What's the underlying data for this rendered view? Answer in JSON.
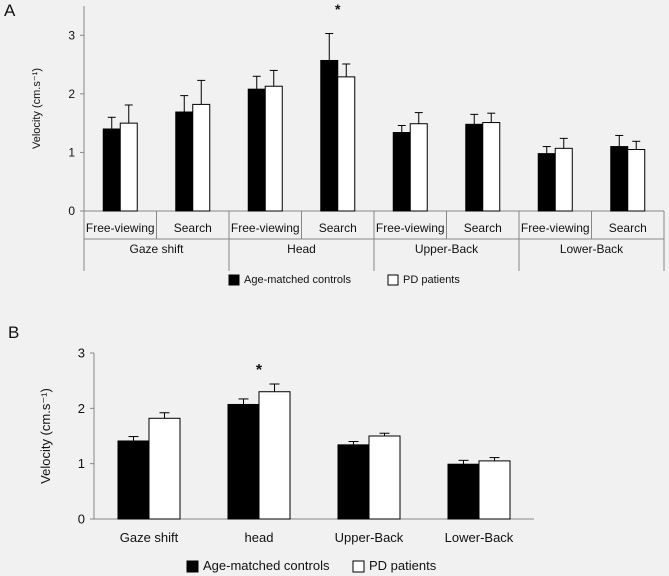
{
  "panels": [
    {
      "label": "A",
      "chart_data": {
        "type": "bar",
        "ylabel": "Velocity (cm.s⁻¹)",
        "ylim": [
          0,
          3.5
        ],
        "yticks": [
          0,
          1,
          2,
          3
        ],
        "groups": [
          "Gaze shift",
          "Head",
          "Upper-Back",
          "Lower-Back"
        ],
        "categories": [
          "Free-viewing",
          "Search",
          "Free-viewing",
          "Search",
          "Free-viewing",
          "Search",
          "Free-viewing",
          "Search"
        ],
        "series": [
          {
            "name": "Age-matched controls",
            "color": "#000000",
            "values": [
              1.4,
              1.69,
              2.08,
              2.57,
              1.34,
              1.48,
              0.98,
              1.1
            ],
            "errors": [
              0.2,
              0.28,
              0.22,
              0.46,
              0.12,
              0.17,
              0.12,
              0.19
            ]
          },
          {
            "name": "PD patients",
            "color": "#ffffff",
            "values": [
              1.5,
              1.82,
              2.13,
              2.29,
              1.49,
              1.51,
              1.07,
              1.05
            ],
            "errors": [
              0.31,
              0.41,
              0.27,
              0.22,
              0.19,
              0.16,
              0.17,
              0.14
            ]
          }
        ],
        "significance": [
          {
            "category_index": 3,
            "mark": "*"
          }
        ],
        "legend": "bottom"
      }
    },
    {
      "label": "B",
      "chart_data": {
        "type": "bar",
        "ylabel": "Velocity (cm.s⁻¹)",
        "ylim": [
          0,
          3
        ],
        "yticks": [
          0,
          1,
          2,
          3
        ],
        "categories": [
          "Gaze shift",
          "head",
          "Upper-Back",
          "Lower-Back"
        ],
        "series": [
          {
            "name": "Age-matched controls",
            "color": "#000000",
            "values": [
              1.41,
              2.07,
              1.34,
              0.99
            ],
            "errors": [
              0.08,
              0.1,
              0.06,
              0.07
            ]
          },
          {
            "name": "PD patients",
            "color": "#ffffff",
            "values": [
              1.82,
              2.3,
              1.5,
              1.05
            ],
            "errors": [
              0.1,
              0.14,
              0.05,
              0.06
            ]
          }
        ],
        "significance": [
          {
            "category_index": 1,
            "mark": "*"
          }
        ],
        "legend": "bottom"
      }
    }
  ]
}
